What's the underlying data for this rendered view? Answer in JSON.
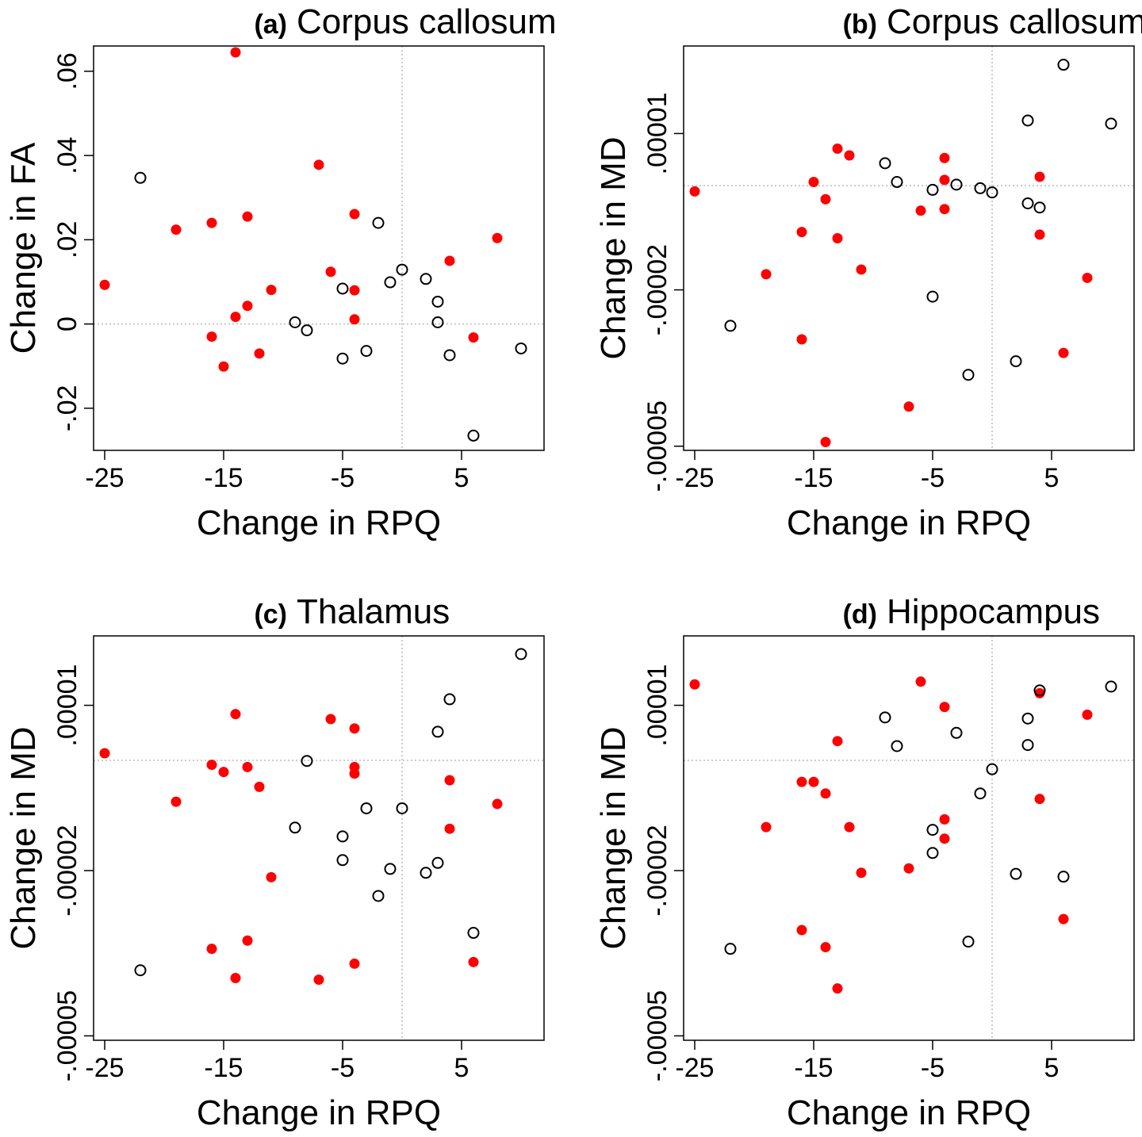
{
  "colors": {
    "filled": "#ff0000",
    "hollow": "#000000",
    "refline": "#bbbbbb",
    "frame": "#000000"
  },
  "chart_data": [
    {
      "type": "scatter",
      "title_letter": "(a)",
      "title": "Corpus callosum",
      "xlabel": "Change in RPQ",
      "ylabel": "Change in FA",
      "xlim": [
        -25,
        11
      ],
      "ylim": [
        -0.03,
        0.066
      ],
      "xticks": [
        -25,
        -15,
        -5,
        5
      ],
      "xtick_labels": [
        "-25",
        "-15",
        "-5",
        "5"
      ],
      "yticks": [
        -0.02,
        0,
        0.02,
        0.04,
        0.06
      ],
      "ytick_labels": [
        "-.02",
        "0",
        ".02",
        ".04",
        ".06"
      ],
      "ref_x": 0,
      "ref_y": 0,
      "grid": false,
      "series": [
        {
          "marker": "filled",
          "points": [
            [
              -25,
              0.0093
            ],
            [
              -19,
              0.0224
            ],
            [
              -16,
              0.024
            ],
            [
              -16,
              -0.003
            ],
            [
              -15,
              -0.0101
            ],
            [
              -14,
              0.0645
            ],
            [
              -14,
              0.0017
            ],
            [
              -13,
              0.0255
            ],
            [
              -13,
              0.0043
            ],
            [
              -12,
              -0.007
            ],
            [
              -11,
              0.0081
            ],
            [
              -7,
              0.0378
            ],
            [
              -6,
              0.0124
            ],
            [
              -4,
              0.0261
            ],
            [
              -4,
              0.008
            ],
            [
              -4,
              0.0011
            ],
            [
              4,
              0.015
            ],
            [
              6,
              -0.0032
            ],
            [
              8,
              0.0204
            ]
          ]
        },
        {
          "marker": "hollow",
          "points": [
            [
              -22,
              0.0347
            ],
            [
              -9,
              0.0004
            ],
            [
              -8,
              -0.0015
            ],
            [
              -5,
              0.0084
            ],
            [
              -5,
              -0.0082
            ],
            [
              -3,
              -0.0064
            ],
            [
              -2,
              0.024
            ],
            [
              -1,
              0.0099
            ],
            [
              0,
              0.0129
            ],
            [
              2,
              0.0107
            ],
            [
              3,
              0.0053
            ],
            [
              3,
              0.0004
            ],
            [
              4,
              -0.0074
            ],
            [
              6,
              -0.0265
            ],
            [
              10,
              -0.0058
            ]
          ]
        }
      ]
    },
    {
      "type": "scatter",
      "title_letter": "(b)",
      "title": "Corpus callosum",
      "xlabel": "Change in RPQ",
      "ylabel": "Change in MD",
      "xlim": [
        -25,
        11
      ],
      "ylim": [
        -5.08e-05,
        2.68e-05
      ],
      "xticks": [
        -25,
        -15,
        -5,
        5
      ],
      "xtick_labels": [
        "-25",
        "-15",
        "-5",
        "5"
      ],
      "yticks": [
        -5e-05,
        -2e-05,
        1e-05
      ],
      "ytick_labels": [
        "-.00005",
        "-.00002",
        ".00001"
      ],
      "ref_x": 0,
      "ref_y": 0,
      "grid": false,
      "series": [
        {
          "marker": "filled",
          "points": [
            [
              -25,
              -1.1e-06
            ],
            [
              -19,
              -1.7e-05
            ],
            [
              -16,
              -8.9e-06
            ],
            [
              -16,
              -2.95e-05
            ],
            [
              -15,
              7e-07
            ],
            [
              -14,
              -2.6e-06
            ],
            [
              -14,
              -4.92e-05
            ],
            [
              -13,
              7.1e-06
            ],
            [
              -13,
              -1.01e-05
            ],
            [
              -12,
              5.8e-06
            ],
            [
              -11,
              -1.61e-05
            ],
            [
              -7,
              -4.24e-05
            ],
            [
              -6,
              -4.8e-06
            ],
            [
              -4,
              5.3e-06
            ],
            [
              -4,
              1.1e-06
            ],
            [
              -4,
              -4.5e-06
            ],
            [
              4,
              1.7e-06
            ],
            [
              4,
              -9.4e-06
            ],
            [
              6,
              -3.21e-05
            ],
            [
              8,
              -1.77e-05
            ]
          ]
        },
        {
          "marker": "hollow",
          "points": [
            [
              -22,
              -2.69e-05
            ],
            [
              -9,
              4.3e-06
            ],
            [
              -8,
              7e-07
            ],
            [
              -5,
              -8e-07
            ],
            [
              -5,
              -2.13e-05
            ],
            [
              -3,
              2e-07
            ],
            [
              -2,
              -3.63e-05
            ],
            [
              -1,
              -5e-07
            ],
            [
              0,
              -1.3e-06
            ],
            [
              2,
              -3.37e-05
            ],
            [
              3,
              1.25e-05
            ],
            [
              3,
              -3.4e-06
            ],
            [
              4,
              -4.2e-06
            ],
            [
              6,
              2.32e-05
            ],
            [
              10,
              1.19e-05
            ]
          ]
        }
      ]
    },
    {
      "type": "scatter",
      "title_letter": "(c)",
      "title": "Thalamus",
      "xlabel": "Change in RPQ",
      "ylabel": "Change in MD",
      "xlim": [
        -25,
        11
      ],
      "ylim": [
        -5.08e-05,
        2.26e-05
      ],
      "xticks": [
        -25,
        -15,
        -5,
        5
      ],
      "xtick_labels": [
        "-25",
        "-15",
        "-5",
        "5"
      ],
      "yticks": [
        -5e-05,
        -2e-05,
        1e-05
      ],
      "ytick_labels": [
        "-.00005",
        "-.00002",
        ".00001"
      ],
      "ref_x": 0,
      "ref_y": 0,
      "grid": false,
      "series": [
        {
          "marker": "filled",
          "points": [
            [
              -25,
              1.3e-06
            ],
            [
              -19,
              -7.5e-06
            ],
            [
              -16,
              -8e-07
            ],
            [
              -16,
              -3.42e-05
            ],
            [
              -15,
              -2.1e-06
            ],
            [
              -14,
              8.4e-06
            ],
            [
              -14,
              -3.95e-05
            ],
            [
              -13,
              -1.2e-06
            ],
            [
              -13,
              -3.27e-05
            ],
            [
              -12,
              -4.8e-06
            ],
            [
              -11,
              -2.12e-05
            ],
            [
              -7,
              -3.98e-05
            ],
            [
              -6,
              7.5e-06
            ],
            [
              -4,
              5.8e-06
            ],
            [
              -4,
              -1.2e-06
            ],
            [
              -4,
              -2.4e-06
            ],
            [
              -4,
              -3.69e-05
            ],
            [
              4,
              -3.6e-06
            ],
            [
              4,
              -1.24e-05
            ],
            [
              6,
              -3.66e-05
            ],
            [
              8,
              -7.9e-06
            ]
          ]
        },
        {
          "marker": "hollow",
          "points": [
            [
              -22,
              -3.81e-05
            ],
            [
              -9,
              -1.22e-05
            ],
            [
              -8,
              -1e-07
            ],
            [
              -5,
              -1.38e-05
            ],
            [
              -5,
              -1.81e-05
            ],
            [
              -3,
              -8.7e-06
            ],
            [
              -2,
              -2.46e-05
            ],
            [
              -1,
              -1.97e-05
            ],
            [
              0,
              -8.7e-06
            ],
            [
              2,
              -2.04e-05
            ],
            [
              3,
              5.2e-06
            ],
            [
              3,
              -1.86e-05
            ],
            [
              4,
              1.11e-05
            ],
            [
              6,
              -3.13e-05
            ],
            [
              10,
              1.93e-05
            ]
          ]
        }
      ]
    },
    {
      "type": "scatter",
      "title_letter": "(d)",
      "title": "Hippocampus",
      "xlabel": "Change in RPQ",
      "ylabel": "Change in MD",
      "xlim": [
        -25,
        11
      ],
      "ylim": [
        -5.08e-05,
        2.26e-05
      ],
      "xticks": [
        -25,
        -15,
        -5,
        5
      ],
      "xtick_labels": [
        "-25",
        "-15",
        "-5",
        "5"
      ],
      "yticks": [
        -5e-05,
        -2e-05,
        1e-05
      ],
      "ytick_labels": [
        "-.00005",
        "-.00002",
        ".00001"
      ],
      "ref_x": 0,
      "ref_y": 0,
      "grid": false,
      "series": [
        {
          "marker": "filled",
          "points": [
            [
              -25,
              1.38e-05
            ],
            [
              -19,
              -1.21e-05
            ],
            [
              -16,
              -3.9e-06
            ],
            [
              -16,
              -3.08e-05
            ],
            [
              -15,
              -3.9e-06
            ],
            [
              -14,
              -6e-06
            ],
            [
              -14,
              -3.39e-05
            ],
            [
              -13,
              3.5e-06
            ],
            [
              -13,
              -4.14e-05
            ],
            [
              -12,
              -1.21e-05
            ],
            [
              -11,
              -2.04e-05
            ],
            [
              -7,
              -1.96e-05
            ],
            [
              -6,
              1.43e-05
            ],
            [
              -4,
              9.7e-06
            ],
            [
              -4,
              -1.07e-05
            ],
            [
              -4,
              -1.42e-05
            ],
            [
              4,
              1.22e-05
            ],
            [
              4,
              -7e-06
            ],
            [
              6,
              -2.88e-05
            ],
            [
              8,
              8.3e-06
            ]
          ]
        },
        {
          "marker": "hollow",
          "points": [
            [
              -22,
              -3.42e-05
            ],
            [
              -9,
              7.8e-06
            ],
            [
              -8,
              2.6e-06
            ],
            [
              -5,
              -1.26e-05
            ],
            [
              -5,
              -1.68e-05
            ],
            [
              -3,
              5e-06
            ],
            [
              -2,
              -3.29e-05
            ],
            [
              -1,
              -6e-06
            ],
            [
              0,
              -1.6e-06
            ],
            [
              2,
              -2.06e-05
            ],
            [
              3,
              7.6e-06
            ],
            [
              3,
              2.8e-06
            ],
            [
              4,
              1.27e-05
            ],
            [
              6,
              -2.11e-05
            ],
            [
              10,
              1.34e-05
            ]
          ]
        }
      ]
    }
  ]
}
